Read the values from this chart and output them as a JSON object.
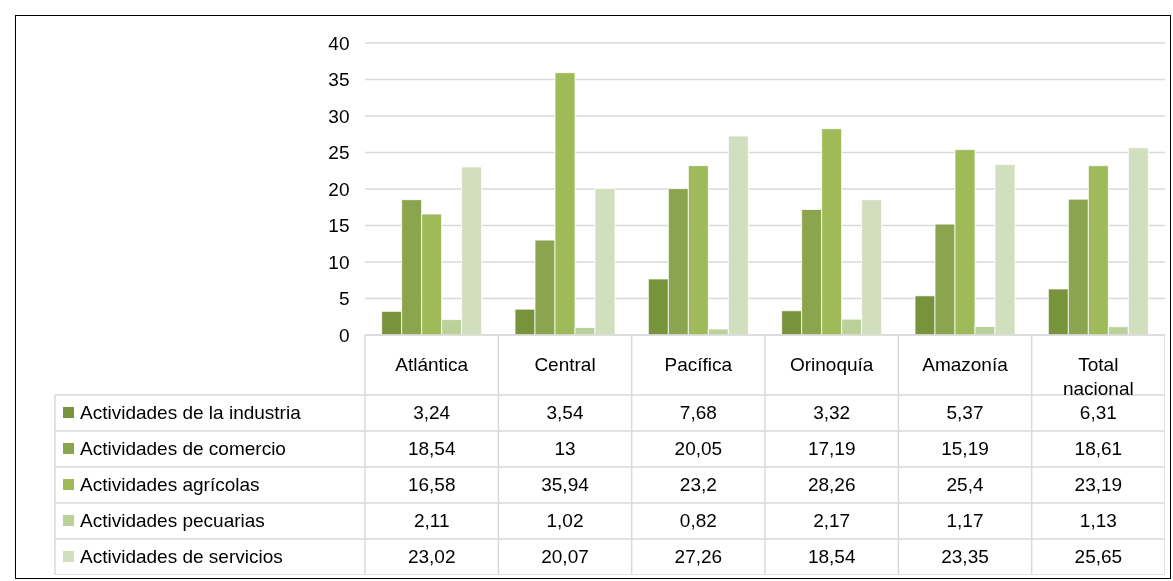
{
  "chart_data": {
    "type": "bar",
    "categories": [
      "Atlántica",
      "Central",
      "Pacífica",
      "Orinoquía",
      "Amazonía",
      "Total nacional"
    ],
    "series": [
      {
        "name": "Actividades de la industria",
        "color": "#77933c",
        "values": [
          3.24,
          3.54,
          7.68,
          3.32,
          5.37,
          6.31
        ],
        "value_labels": [
          "3,24",
          "3,54",
          "7,68",
          "3,32",
          "5,37",
          "6,31"
        ]
      },
      {
        "name": "Actividades de comercio",
        "color": "#8ba44e",
        "values": [
          18.54,
          13,
          20.05,
          17.19,
          15.19,
          18.61
        ],
        "value_labels": [
          "18,54",
          "13",
          "20,05",
          "17,19",
          "15,19",
          "18,61"
        ]
      },
      {
        "name": "Actividades agrícolas",
        "color": "#9fbb59",
        "values": [
          16.58,
          35.94,
          23.2,
          28.26,
          25.4,
          23.19
        ],
        "value_labels": [
          "16,58",
          "35,94",
          "23,2",
          "28,26",
          "25,4",
          "23,19"
        ]
      },
      {
        "name": "Actividades pecuarias",
        "color": "#bad19a",
        "values": [
          2.11,
          1.02,
          0.82,
          2.17,
          1.17,
          1.13
        ],
        "value_labels": [
          "2,11",
          "1,02",
          "0,82",
          "2,17",
          "1,17",
          "1,13"
        ]
      },
      {
        "name": "Actividades de servicios",
        "color": "#d2dfbf",
        "values": [
          23.02,
          20.07,
          27.26,
          18.54,
          23.35,
          25.65
        ],
        "value_labels": [
          "23,02",
          "20,07",
          "27,26",
          "18,54",
          "23,35",
          "25,65"
        ]
      }
    ],
    "ylim": [
      0,
      40
    ],
    "yticks": [
      0,
      5,
      10,
      15,
      20,
      25,
      30,
      35,
      40
    ],
    "grid": "y",
    "legend": "bottom"
  }
}
